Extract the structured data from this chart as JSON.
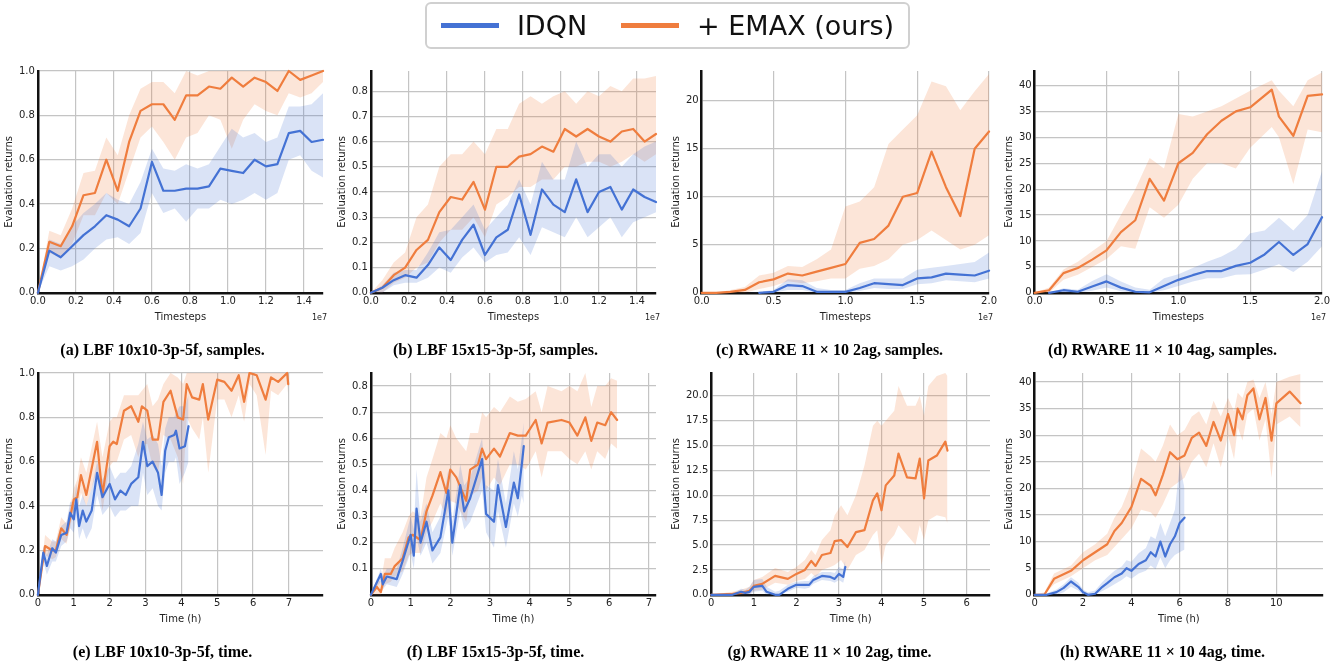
{
  "chart_data": [
    {
      "type": "line",
      "title": "(a) LBF 10x10-3p-5f, samples.",
      "xlabel": "Timesteps",
      "ylabel": "Evaluation returns",
      "annotations": [
        "1e7"
      ],
      "legend": "top",
      "grid": true,
      "xlim": [
        0,
        1.5
      ],
      "xticks": [
        {
          "value": 0,
          "label": "0.0"
        },
        0.2,
        0.4,
        0.6,
        0.8,
        {
          "value": 1,
          "label": "1.0"
        },
        1.2,
        1.4
      ],
      "ylim": [
        0,
        1
      ],
      "yticks": [
        {
          "value": 0,
          "label": "0.0"
        },
        0.2,
        0.4,
        0.6,
        0.8,
        {
          "value": 1,
          "label": "1.0"
        }
      ],
      "series": [
        {
          "name": "IDQN",
          "color": "#4472d4",
          "x": [
            0,
            0.06,
            0.12,
            0.18,
            0.24,
            0.3,
            0.36,
            0.42,
            0.48,
            0.54,
            0.6,
            0.66,
            0.72,
            0.78,
            0.84,
            0.9,
            0.96,
            1.02,
            1.08,
            1.14,
            1.2,
            1.26,
            1.32,
            1.38,
            1.44,
            1.5
          ],
          "values": [
            0,
            0.19,
            0.16,
            0.21,
            0.26,
            0.3,
            0.35,
            0.33,
            0.3,
            0.38,
            0.59,
            0.46,
            0.46,
            0.47,
            0.47,
            0.48,
            0.56,
            0.55,
            0.54,
            0.6,
            0.57,
            0.58,
            0.72,
            0.73,
            0.68,
            0.69
          ],
          "lower": [
            0,
            0.12,
            0.1,
            0.12,
            0.15,
            0.2,
            0.24,
            0.25,
            0.22,
            0.27,
            0.45,
            0.36,
            0.38,
            0.32,
            0.38,
            0.38,
            0.42,
            0.4,
            0.42,
            0.45,
            0.42,
            0.45,
            0.6,
            0.62,
            0.55,
            0.52
          ],
          "upper": [
            0,
            0.24,
            0.22,
            0.3,
            0.36,
            0.4,
            0.45,
            0.42,
            0.4,
            0.5,
            0.65,
            0.56,
            0.55,
            0.58,
            0.56,
            0.58,
            0.66,
            0.74,
            0.7,
            0.72,
            0.68,
            0.7,
            0.84,
            0.84,
            0.85,
            0.9
          ]
        },
        {
          "name": "+ EMAX (ours)",
          "color": "#ef7d3e",
          "x": [
            0,
            0.06,
            0.12,
            0.18,
            0.24,
            0.3,
            0.36,
            0.42,
            0.48,
            0.54,
            0.6,
            0.66,
            0.72,
            0.78,
            0.84,
            0.9,
            0.96,
            1.02,
            1.08,
            1.14,
            1.2,
            1.26,
            1.32,
            1.38,
            1.44,
            1.5
          ],
          "values": [
            0,
            0.23,
            0.21,
            0.3,
            0.44,
            0.45,
            0.6,
            0.46,
            0.68,
            0.82,
            0.85,
            0.85,
            0.78,
            0.89,
            0.89,
            0.93,
            0.92,
            0.97,
            0.93,
            0.97,
            0.95,
            0.91,
            1,
            0.96,
            0.98,
            1
          ],
          "lower": [
            0,
            0.18,
            0.16,
            0.22,
            0.35,
            0.35,
            0.45,
            0.4,
            0.55,
            0.7,
            0.75,
            0.68,
            0.6,
            0.7,
            0.72,
            0.8,
            0.78,
            0.65,
            0.78,
            0.85,
            0.82,
            0.8,
            0.9,
            0.88,
            0.9,
            0.95
          ],
          "upper": [
            0,
            0.28,
            0.26,
            0.38,
            0.54,
            0.55,
            0.7,
            0.62,
            0.8,
            0.92,
            0.95,
            0.95,
            0.9,
            1,
            0.98,
            1,
            1,
            1,
            1,
            1,
            1,
            1,
            1,
            1,
            1,
            1
          ]
        }
      ]
    },
    {
      "type": "line",
      "title": "(b) LBF 15x15-3p-5f, samples.",
      "xlabel": "Timesteps",
      "ylabel": "Evaluation returns",
      "annotations": [
        "1e7"
      ],
      "grid": true,
      "xlim": [
        0,
        1.5
      ],
      "xticks": [
        {
          "value": 0,
          "label": "0.0"
        },
        0.2,
        0.4,
        0.6,
        0.8,
        {
          "value": 1,
          "label": "1.0"
        },
        1.2,
        1.4
      ],
      "ylim": [
        0,
        0.88
      ],
      "yticks": [
        {
          "value": 0,
          "label": "0.0"
        },
        0.1,
        0.2,
        0.3,
        0.4,
        0.5,
        0.6,
        0.7,
        0.8
      ],
      "series": [
        {
          "color": "#4472d4",
          "x": [
            0,
            0.06,
            0.12,
            0.18,
            0.24,
            0.3,
            0.36,
            0.42,
            0.48,
            0.54,
            0.6,
            0.66,
            0.72,
            0.78,
            0.84,
            0.9,
            0.96,
            1.02,
            1.08,
            1.14,
            1.2,
            1.26,
            1.32,
            1.38,
            1.44,
            1.5
          ],
          "values": [
            0,
            0.02,
            0.05,
            0.07,
            0.06,
            0.11,
            0.18,
            0.13,
            0.21,
            0.27,
            0.15,
            0.22,
            0.25,
            0.39,
            0.23,
            0.41,
            0.35,
            0.32,
            0.45,
            0.32,
            0.4,
            0.42,
            0.33,
            0.41,
            0.38,
            0.36
          ],
          "lower": [
            0,
            0,
            0.03,
            0.04,
            0.04,
            0.06,
            0.1,
            0.08,
            0.14,
            0.18,
            0.12,
            0.15,
            0.16,
            0.22,
            0.15,
            0.26,
            0.24,
            0.22,
            0.3,
            0.22,
            0.26,
            0.3,
            0.22,
            0.28,
            0.3,
            0.32
          ],
          "upper": [
            0,
            0.03,
            0.08,
            0.09,
            0.09,
            0.16,
            0.24,
            0.25,
            0.3,
            0.35,
            0.25,
            0.3,
            0.35,
            0.45,
            0.35,
            0.52,
            0.45,
            0.45,
            0.6,
            0.5,
            0.55,
            0.55,
            0.5,
            0.55,
            0.58,
            0.6
          ]
        },
        {
          "color": "#ef7d3e",
          "x": [
            0,
            0.06,
            0.12,
            0.18,
            0.24,
            0.3,
            0.36,
            0.42,
            0.48,
            0.54,
            0.6,
            0.66,
            0.72,
            0.78,
            0.84,
            0.9,
            0.96,
            1.02,
            1.08,
            1.14,
            1.2,
            1.26,
            1.32,
            1.38,
            1.44,
            1.5
          ],
          "values": [
            0,
            0.02,
            0.07,
            0.1,
            0.17,
            0.21,
            0.32,
            0.38,
            0.37,
            0.44,
            0.33,
            0.5,
            0.5,
            0.54,
            0.55,
            0.58,
            0.56,
            0.65,
            0.62,
            0.65,
            0.62,
            0.6,
            0.64,
            0.65,
            0.6,
            0.63
          ],
          "lower": [
            0,
            0,
            0.04,
            0.06,
            0.1,
            0.12,
            0.2,
            0.25,
            0.25,
            0.3,
            0.22,
            0.35,
            0.38,
            0.42,
            0.42,
            0.45,
            0.45,
            0.5,
            0.5,
            0.52,
            0.52,
            0.5,
            0.52,
            0.55,
            0.52,
            0.55
          ],
          "upper": [
            0,
            0.05,
            0.12,
            0.16,
            0.3,
            0.35,
            0.5,
            0.55,
            0.55,
            0.6,
            0.55,
            0.65,
            0.65,
            0.75,
            0.78,
            0.75,
            0.78,
            0.8,
            0.75,
            0.8,
            0.78,
            0.82,
            0.8,
            0.85,
            0.85,
            0.86
          ]
        }
      ]
    },
    {
      "type": "line",
      "title": "(c) RWARE 11 × 10 2ag, samples.",
      "xlabel": "Timesteps",
      "ylabel": "Evaluation returns",
      "annotations": [
        "1e7"
      ],
      "grid": true,
      "xlim": [
        0,
        2
      ],
      "xticks": [
        {
          "value": 0,
          "label": "0.0"
        },
        0.5,
        {
          "value": 1,
          "label": "1.0"
        },
        1.5,
        {
          "value": 2,
          "label": "2.0"
        }
      ],
      "ylim": [
        0,
        23.1
      ],
      "yticks": [
        0,
        5,
        10,
        15,
        20
      ],
      "series": [
        {
          "color": "#4472d4",
          "x": [
            0,
            0.1,
            0.2,
            0.3,
            0.4,
            0.5,
            0.6,
            0.7,
            0.8,
            0.9,
            1,
            1.1,
            1.2,
            1.3,
            1.4,
            1.5,
            1.6,
            1.7,
            1.8,
            1.9,
            2
          ],
          "values": [
            null,
            null,
            null,
            null,
            0,
            0.1,
            0.8,
            0.7,
            0.1,
            0.1,
            0.1,
            0.5,
            1,
            0.9,
            0.8,
            1.5,
            1.6,
            2,
            1.9,
            1.8,
            2.3
          ],
          "lower": [
            0,
            0,
            0,
            0,
            0,
            0,
            0.3,
            0.3,
            0,
            0,
            0,
            0.2,
            0.5,
            0.4,
            0.4,
            0.9,
            1,
            1.3,
            1.2,
            1.1,
            1.5
          ],
          "upper": [
            0,
            0,
            0,
            0,
            0.1,
            0.3,
            1.4,
            1.3,
            0.5,
            0.3,
            0.3,
            1,
            1.5,
            1.5,
            1.5,
            2.4,
            2.6,
            2.8,
            3,
            3.2,
            4.2
          ]
        },
        {
          "color": "#ef7d3e",
          "x": [
            0,
            0.1,
            0.2,
            0.3,
            0.4,
            0.5,
            0.6,
            0.7,
            0.8,
            0.9,
            1,
            1.1,
            1.2,
            1.3,
            1.4,
            1.5,
            1.6,
            1.7,
            1.8,
            1.9,
            2
          ],
          "values": [
            0,
            0,
            0.1,
            0.3,
            1.1,
            1.4,
            2,
            1.8,
            2.2,
            2.6,
            3,
            5.2,
            5.6,
            7,
            10,
            10.4,
            14.7,
            11,
            8,
            15,
            16.8
          ],
          "lower": [
            0,
            0,
            0,
            0,
            0.4,
            0.7,
            1.2,
            1,
            1.2,
            1.5,
            1.5,
            2.5,
            2.8,
            3.5,
            5,
            5.5,
            6.5,
            5.5,
            4.5,
            5,
            6
          ],
          "upper": [
            0,
            0,
            0.3,
            0.6,
            1.8,
            2.1,
            2.8,
            2.7,
            3.5,
            4.5,
            9,
            9.5,
            11,
            15.5,
            17,
            18.5,
            22,
            21.5,
            19,
            21,
            22.8
          ]
        }
      ]
    },
    {
      "type": "line",
      "title": "(d) RWARE 11 × 10 4ag, samples.",
      "xlabel": "Timesteps",
      "ylabel": "Evaluation returns",
      "annotations": [
        "1e7"
      ],
      "grid": true,
      "xlim": [
        0,
        2
      ],
      "xticks": [
        {
          "value": 0,
          "label": "0.0"
        },
        0.5,
        {
          "value": 1,
          "label": "1.0"
        },
        1.5,
        {
          "value": 2,
          "label": "2.0"
        }
      ],
      "ylim": [
        0,
        42.8
      ],
      "yticks": [
        0,
        5,
        10,
        15,
        20,
        25,
        30,
        35,
        40
      ],
      "series": [
        {
          "color": "#4472d4",
          "x": [
            0,
            0.1,
            0.2,
            0.3,
            0.4,
            0.5,
            0.6,
            0.7,
            0.8,
            0.9,
            1,
            1.1,
            1.2,
            1.3,
            1.4,
            1.5,
            1.6,
            1.7,
            1.8,
            1.9,
            2
          ],
          "values": [
            null,
            0,
            0.5,
            0.2,
            1.2,
            2.2,
            1,
            0.2,
            0.1,
            1.3,
            2.5,
            3.4,
            4.2,
            4.2,
            5.2,
            5.8,
            7.4,
            9.8,
            7.3,
            9.4,
            14.6
          ],
          "lower": [
            0,
            0,
            0,
            0,
            0.4,
            1,
            0.3,
            0,
            0,
            0.5,
            1.3,
            2.2,
            2.8,
            2.8,
            3.5,
            3.6,
            4.5,
            5.5,
            4,
            6,
            9
          ],
          "upper": [
            0,
            0,
            0.9,
            0.6,
            2.3,
            3.6,
            2.2,
            1,
            0.6,
            2.8,
            3.6,
            4.8,
            6,
            7,
            8.5,
            11.5,
            12,
            14.5,
            12,
            15,
            23.5
          ]
        },
        {
          "color": "#ef7d3e",
          "x": [
            0,
            0.1,
            0.2,
            0.3,
            0.4,
            0.5,
            0.6,
            0.7,
            0.8,
            0.9,
            1,
            1.1,
            1.2,
            1.3,
            1.4,
            1.5,
            1.65,
            1.7,
            1.8,
            1.9,
            2
          ],
          "values": [
            0,
            0.5,
            3.8,
            4.8,
            6.4,
            8.2,
            11.7,
            14,
            22,
            17.8,
            25,
            27,
            30.6,
            33.2,
            35,
            35.8,
            39.2,
            34,
            30.3,
            38,
            38.3
          ],
          "lower": [
            0,
            0,
            2.5,
            3.5,
            5,
            6.5,
            9,
            8.5,
            16.5,
            14.5,
            17,
            22,
            25,
            25,
            24,
            28,
            32,
            30,
            21,
            31.5,
            31
          ],
          "upper": [
            0,
            1,
            4.5,
            6,
            8,
            10,
            15,
            20,
            26,
            24,
            34.5,
            34,
            35,
            36,
            37.5,
            39,
            41,
            39,
            36,
            41,
            42.5
          ]
        }
      ]
    },
    {
      "type": "line",
      "title": "(e) LBF 10x10-3p-5f, time.",
      "xlabel": "Time (h)",
      "ylabel": "Evaluation returns",
      "grid": true,
      "xlim": [
        0,
        7.95
      ],
      "xticks": [
        0,
        1,
        2,
        3,
        4,
        5,
        6,
        7
      ],
      "ylim": [
        0,
        1
      ],
      "yticks": [
        {
          "value": 0,
          "label": "0.0"
        },
        0.2,
        0.4,
        0.6,
        0.8,
        {
          "value": 1,
          "label": "1.0"
        }
      ],
      "series": [
        {
          "color": "#4472d4",
          "x": [
            0,
            0.15,
            0.25,
            0.4,
            0.5,
            0.65,
            0.8,
            0.9,
            1,
            1.07,
            1.15,
            1.25,
            1.35,
            1.5,
            1.65,
            1.8,
            2,
            2.15,
            2.3,
            2.45,
            2.6,
            2.8,
            2.93,
            3.05,
            3.2,
            3.35,
            3.45,
            3.55,
            3.65,
            3.8,
            3.85,
            3.95,
            4.1,
            4.2
          ],
          "values": [
            0,
            0.19,
            0.13,
            0.21,
            0.19,
            0.27,
            0.28,
            0.37,
            0.34,
            0.43,
            0.31,
            0.38,
            0.33,
            0.38,
            0.55,
            0.44,
            0.5,
            0.43,
            0.47,
            0.45,
            0.5,
            0.53,
            0.69,
            0.58,
            0.6,
            0.55,
            0.45,
            0.65,
            0.71,
            0.72,
            0.74,
            0.66,
            0.67,
            0.76
          ],
          "lower": [
            0,
            0.15,
            0.09,
            0.15,
            0.15,
            0.22,
            0.24,
            0.3,
            0.28,
            0.35,
            0.25,
            0.3,
            0.25,
            0.3,
            0.45,
            0.36,
            0.4,
            0.35,
            0.38,
            0.38,
            0.4,
            0.4,
            0.55,
            0.45,
            0.48,
            0.4,
            0.38,
            0.55,
            0.6,
            0.6,
            0.62,
            0.5,
            0.55,
            0.6
          ],
          "upper": [
            0,
            0.22,
            0.18,
            0.25,
            0.24,
            0.31,
            0.33,
            0.42,
            0.42,
            0.5,
            0.4,
            0.45,
            0.4,
            0.48,
            0.6,
            0.52,
            0.58,
            0.52,
            0.55,
            0.55,
            0.58,
            0.68,
            0.78,
            0.7,
            0.72,
            0.68,
            0.58,
            0.75,
            0.8,
            0.8,
            0.82,
            0.85,
            0.85,
            0.9
          ]
        },
        {
          "color": "#ef7d3e",
          "x": [
            0,
            0.2,
            0.4,
            0.5,
            0.65,
            0.8,
            1,
            1.1,
            1.2,
            1.35,
            1.65,
            1.8,
            2,
            2.1,
            2.2,
            2.4,
            2.6,
            2.8,
            2.9,
            3.05,
            3.2,
            3.35,
            3.5,
            3.7,
            3.9,
            4.05,
            4.15,
            4.3,
            4.5,
            4.6,
            4.75,
            5,
            5.2,
            5.4,
            5.6,
            5.75,
            5.9,
            6.1,
            6.35,
            6.5,
            6.7,
            6.95,
            6.98
          ],
          "values": [
            0,
            0.22,
            0.2,
            0.2,
            0.3,
            0.27,
            0.43,
            0.44,
            0.54,
            0.45,
            0.69,
            0.45,
            0.67,
            0.69,
            0.68,
            0.83,
            0.85,
            0.78,
            0.85,
            0.83,
            0.7,
            0.7,
            0.87,
            0.92,
            0.8,
            0.79,
            0.95,
            0.89,
            0.88,
            0.95,
            0.79,
            0.97,
            0.96,
            0.92,
            0.99,
            0.87,
            1,
            0.99,
            0.88,
            0.98,
            0.96,
            1,
            0.95
          ],
          "lower": [
            0,
            0.18,
            0.16,
            0.17,
            0.25,
            0.23,
            0.38,
            0.38,
            0.46,
            0.4,
            0.56,
            0.38,
            0.58,
            0.6,
            0.6,
            0.7,
            0.72,
            0.62,
            0.68,
            0.68,
            0.58,
            0.55,
            0.72,
            0.7,
            0.62,
            0.5,
            0.8,
            0.75,
            0.7,
            0.8,
            0.55,
            0.88,
            0.88,
            0.8,
            0.9,
            0.78,
            0.95,
            0.9,
            0.63,
            0.92,
            0.9,
            0.95,
            0.9
          ],
          "upper": [
            0,
            0.27,
            0.24,
            0.24,
            0.35,
            0.32,
            0.48,
            0.52,
            0.62,
            0.55,
            0.78,
            0.62,
            0.78,
            0.8,
            0.8,
            0.9,
            0.9,
            0.9,
            0.92,
            0.95,
            0.85,
            0.88,
            0.95,
            1,
            0.98,
            0.95,
            1,
            1,
            1,
            1,
            1,
            1,
            1,
            1,
            1,
            1,
            1,
            1,
            1,
            1,
            1,
            1,
            1
          ]
        }
      ]
    },
    {
      "type": "line",
      "title": "(f) LBF 15x15-3p-5f, time.",
      "xlabel": "Time (h)",
      "ylabel": "Evaluation returns",
      "grid": true,
      "xlim": [
        0,
        7.18
      ],
      "xticks": [
        0,
        1,
        2,
        3,
        4,
        5,
        6,
        7
      ],
      "ylim": [
        0,
        0.85
      ],
      "yticks": [
        0.1,
        0.2,
        0.3,
        0.4,
        0.5,
        0.6,
        0.7,
        0.8
      ],
      "series": [
        {
          "color": "#4472d4",
          "x": [
            0,
            0.25,
            0.3,
            0.4,
            0.65,
            0.8,
            1,
            1.08,
            1.15,
            1.25,
            1.4,
            1.55,
            1.75,
            1.95,
            2.05,
            2.25,
            2.35,
            2.5,
            2.8,
            2.9,
            3.1,
            3.2,
            3.4,
            3.6,
            3.7,
            3.8,
            3.85
          ],
          "values": [
            0,
            0.08,
            0.04,
            0.07,
            0.06,
            0.13,
            0.23,
            0.15,
            0.33,
            0.2,
            0.28,
            0.17,
            0.22,
            0.4,
            0.2,
            0.42,
            0.32,
            0.37,
            0.52,
            0.31,
            0.28,
            0.42,
            0.26,
            0.43,
            0.37,
            0.5,
            0.57
          ],
          "lower": [
            0,
            0.05,
            0.02,
            0.04,
            0.03,
            0.08,
            0.16,
            0.1,
            0.22,
            0.15,
            0.2,
            0.12,
            0.16,
            0.3,
            0.15,
            0.32,
            0.25,
            0.28,
            0.4,
            0.24,
            0.18,
            0.32,
            0.18,
            0.35,
            0.3,
            0.38,
            0.35
          ],
          "upper": [
            0,
            0.1,
            0.07,
            0.1,
            0.1,
            0.18,
            0.3,
            0.25,
            0.48,
            0.28,
            0.35,
            0.24,
            0.3,
            0.48,
            0.28,
            0.5,
            0.42,
            0.45,
            0.6,
            0.42,
            0.4,
            0.52,
            0.35,
            0.55,
            0.48,
            0.6,
            0.66
          ]
        },
        {
          "color": "#ef7d3e",
          "x": [
            0,
            0.15,
            0.25,
            0.35,
            0.5,
            0.6,
            0.8,
            0.95,
            1.05,
            1.25,
            1.4,
            1.55,
            1.75,
            1.9,
            2,
            2.15,
            2.4,
            2.5,
            2.7,
            2.8,
            2.9,
            3.1,
            3.25,
            3.5,
            3.7,
            3.9,
            4.15,
            4.3,
            4.45,
            4.8,
            5,
            5.2,
            5.4,
            5.55,
            5.7,
            5.9,
            6.05,
            6.2
          ],
          "values": [
            0,
            0.03,
            0.01,
            0.08,
            0.08,
            0.11,
            0.14,
            0.22,
            0.23,
            0.21,
            0.32,
            0.38,
            0.47,
            0.39,
            0.48,
            0.45,
            0.36,
            0.48,
            0.5,
            0.56,
            0.52,
            0.56,
            0.53,
            0.62,
            0.61,
            0.61,
            0.67,
            0.58,
            0.66,
            0.67,
            0.66,
            0.61,
            0.68,
            0.59,
            0.66,
            0.65,
            0.7,
            0.67
          ],
          "lower": [
            0,
            0,
            0,
            0.04,
            0.05,
            0.07,
            0.09,
            0.15,
            0.16,
            0.16,
            0.24,
            0.28,
            0.35,
            0.3,
            0.36,
            0.35,
            0.28,
            0.38,
            0.4,
            0.45,
            0.4,
            0.45,
            0.42,
            0.5,
            0.5,
            0.48,
            0.55,
            0.45,
            0.55,
            0.55,
            0.52,
            0.5,
            0.55,
            0.48,
            0.55,
            0.52,
            0.58,
            0.56
          ],
          "upper": [
            0,
            0.06,
            0.05,
            0.14,
            0.14,
            0.18,
            0.24,
            0.3,
            0.32,
            0.3,
            0.45,
            0.52,
            0.62,
            0.6,
            0.65,
            0.6,
            0.55,
            0.62,
            0.62,
            0.7,
            0.68,
            0.72,
            0.7,
            0.76,
            0.74,
            0.75,
            0.78,
            0.7,
            0.8,
            0.78,
            0.8,
            0.78,
            0.85,
            0.72,
            0.8,
            0.8,
            0.83,
            0.82
          ]
        }
      ]
    },
    {
      "type": "line",
      "title": "(g) RWARE 11 × 10 2ag, time.",
      "xlabel": "Time (h)",
      "ylabel": "Evaluation returns",
      "grid": true,
      "xlim": [
        0,
        6.55
      ],
      "xticks": [
        0,
        1,
        2,
        3,
        4,
        5,
        6
      ],
      "ylim": [
        0,
        22.3
      ],
      "yticks": [
        {
          "value": 0,
          "label": "0.0"
        },
        2.5,
        {
          "value": 5,
          "label": "5.0"
        },
        7.5,
        {
          "value": 10,
          "label": "10.0"
        },
        12.5,
        {
          "value": 15,
          "label": "15.0"
        },
        17.5,
        {
          "value": 20,
          "label": "20.0"
        }
      ],
      "series": [
        {
          "color": "#4472d4",
          "x": [
            0,
            0.5,
            0.7,
            0.8,
            0.9,
            1,
            1.2,
            1.3,
            1.5,
            1.6,
            1.8,
            2,
            2.2,
            2.3,
            2.4,
            2.6,
            2.8,
            2.9,
            3,
            3.1,
            3.15
          ],
          "values": [
            0,
            0,
            0.3,
            0.2,
            0.3,
            0.8,
            0.9,
            0.3,
            0,
            0,
            0.6,
            1,
            1,
            1,
            1.5,
            1.9,
            1.8,
            1.6,
            2.1,
            1.8,
            2.8
          ],
          "lower": [
            0,
            0,
            0,
            0,
            0,
            0.3,
            0.4,
            0,
            0,
            0,
            0.3,
            0.7,
            0.6,
            0.7,
            1.1,
            1.5,
            1.4,
            1.2,
            1.5,
            1.2,
            2
          ],
          "upper": [
            0,
            0.1,
            0.6,
            0.5,
            0.8,
            1.5,
            1.6,
            0.8,
            0.3,
            0.4,
            1,
            1.3,
            1.4,
            1.4,
            1.9,
            2.3,
            2.3,
            2.2,
            2.8,
            2.6,
            3.5
          ]
        },
        {
          "color": "#ef7d3e",
          "x": [
            0,
            0.5,
            0.7,
            0.9,
            1,
            1.2,
            1.5,
            1.8,
            2,
            2.2,
            2.35,
            2.45,
            2.6,
            2.8,
            2.9,
            3.05,
            3.2,
            3.4,
            3.6,
            3.8,
            3.9,
            4,
            4.1,
            4.3,
            4.4,
            4.6,
            4.8,
            4.9,
            5,
            5.1,
            5.3,
            5.5,
            5.55
          ],
          "values": [
            0,
            0.1,
            0.2,
            0.4,
            0.9,
            1.1,
            1.9,
            1.6,
            2.1,
            2.5,
            3.4,
            2.9,
            4,
            4.2,
            5.4,
            5.5,
            4.8,
            6.3,
            6.5,
            9.5,
            10.2,
            8.5,
            11,
            12,
            14.2,
            11.8,
            11.7,
            13.7,
            9.7,
            13.5,
            14,
            15.4,
            14.5
          ],
          "lower": [
            0,
            0,
            0,
            0.1,
            0.4,
            0.5,
            1.2,
            1,
            1.4,
            1.6,
            2.2,
            1.8,
            2.5,
            2.8,
            3,
            3.5,
            2.5,
            4,
            4.5,
            6,
            6.5,
            3,
            5,
            6,
            7,
            6,
            5,
            7,
            5.5,
            7.5,
            8,
            7.8,
            7.2
          ],
          "upper": [
            0,
            0.3,
            0.5,
            0.8,
            1.5,
            1.8,
            2.7,
            2.3,
            2.8,
            3.5,
            4.5,
            4,
            5.5,
            6.5,
            8,
            9,
            8,
            10,
            13,
            17,
            17.5,
            17,
            17.5,
            18.5,
            21,
            19,
            19,
            20,
            18,
            21,
            22,
            22.3,
            22
          ]
        }
      ]
    },
    {
      "type": "line",
      "title": "(h) RWARE 11 × 10 4ag, time.",
      "xlabel": "Time (h)",
      "ylabel": "Evaluation returns",
      "grid": true,
      "xlim": [
        0,
        11.93
      ],
      "xticks": [
        0,
        2,
        4,
        6,
        8,
        10
      ],
      "ylim": [
        0,
        41.7
      ],
      "yticks": [
        0,
        5,
        10,
        15,
        20,
        25,
        30,
        35,
        40
      ],
      "series": [
        {
          "color": "#4472d4",
          "x": [
            0,
            0.5,
            0.9,
            1.2,
            1.5,
            1.8,
            2,
            2.2,
            2.5,
            2.8,
            3,
            3.3,
            3.6,
            3.8,
            4,
            4.3,
            4.6,
            4.8,
            5,
            5.2,
            5.4,
            5.6,
            5.8,
            6,
            6.2
          ],
          "values": [
            0,
            0,
            0.5,
            1.3,
            2.5,
            1.5,
            0.5,
            0,
            0.2,
            1.5,
            2.2,
            3.3,
            4,
            5,
            4.5,
            5.8,
            6.5,
            8,
            7.2,
            10,
            7.2,
            9.5,
            11,
            13.5,
            14.5
          ],
          "lower": [
            0,
            0,
            0,
            0.5,
            1.5,
            0.8,
            0,
            0,
            0,
            0.7,
            1.2,
            2,
            2.8,
            3.5,
            3,
            4,
            4.5,
            5.5,
            4.8,
            7,
            5,
            6.5,
            7.5,
            8,
            8.5
          ],
          "upper": [
            0,
            0.3,
            1,
            2,
            3.3,
            2.3,
            1,
            0.5,
            0.8,
            2.4,
            3.3,
            4.5,
            5.3,
            6.5,
            6.2,
            7.8,
            8.8,
            11,
            10.5,
            13.5,
            11,
            13.5,
            16,
            24.5,
            20
          ]
        },
        {
          "color": "#ef7d3e",
          "x": [
            0,
            0.4,
            0.8,
            1.5,
            2,
            2.5,
            3,
            3.3,
            3.6,
            4,
            4.4,
            4.8,
            5,
            5.3,
            5.6,
            5.9,
            6.2,
            6.5,
            6.8,
            7.1,
            7.4,
            7.7,
            8,
            8.25,
            8.4,
            8.6,
            8.8,
            9.05,
            9.3,
            9.55,
            9.8,
            10,
            10.55,
            11
          ],
          "values": [
            0,
            0,
            3,
            4.5,
            6.5,
            8,
            9.5,
            12,
            13.5,
            16.5,
            21.8,
            20.5,
            18.7,
            22.5,
            26.8,
            25.5,
            26.2,
            29.5,
            30.5,
            28,
            32.5,
            29,
            34,
            30,
            35,
            33,
            37.5,
            38.8,
            33,
            37,
            29,
            36,
            38.2,
            36
          ],
          "lower": [
            0,
            0,
            2,
            3.5,
            5,
            6.5,
            7.5,
            9,
            10.5,
            12.5,
            16,
            15.5,
            14.5,
            17,
            20,
            21,
            22,
            25,
            26.5,
            24,
            28.5,
            24,
            30,
            25.5,
            31.5,
            29,
            34,
            35,
            29,
            33,
            22,
            32,
            33.5,
            31.5
          ],
          "upper": [
            0,
            0.5,
            4,
            5.5,
            8,
            9.5,
            11.5,
            14.5,
            16.5,
            21,
            27.5,
            26,
            25,
            28,
            32,
            30,
            31,
            33.5,
            34.5,
            32,
            36.5,
            33.5,
            37,
            34.5,
            38,
            37,
            40,
            40.5,
            37,
            40,
            34,
            40,
            41,
            41.5
          ]
        }
      ]
    }
  ]
}
